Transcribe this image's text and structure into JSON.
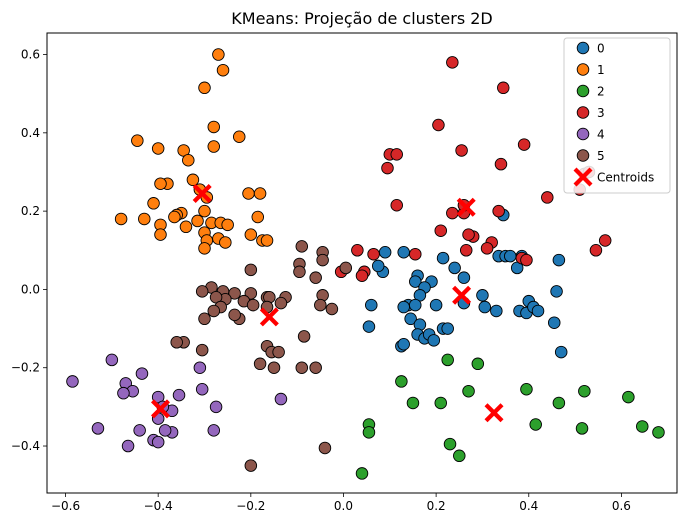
{
  "chart_data": {
    "type": "scatter",
    "title": "KMeans: Projeção de clusters 2D",
    "xlabel": "",
    "ylabel": "",
    "xlim": [
      -0.64,
      0.72
    ],
    "ylim": [
      -0.52,
      0.655
    ],
    "xticks": [
      -0.6,
      -0.4,
      -0.2,
      0.0,
      0.2,
      0.4,
      0.6
    ],
    "xtick_labels": [
      "−0.6",
      "−0.4",
      "−0.2",
      "0.0",
      "0.2",
      "0.4",
      "0.6"
    ],
    "yticks": [
      -0.4,
      -0.2,
      0.0,
      0.2,
      0.4,
      0.6
    ],
    "ytick_labels": [
      "−0.4",
      "−0.2",
      "0.0",
      "0.2",
      "0.4",
      "0.6"
    ],
    "grid": false,
    "legend_position": "top-right",
    "series": [
      {
        "name": "0",
        "color": "#1f77b4",
        "points": [
          [
            0.09,
            0.095
          ],
          [
            0.085,
            0.045
          ],
          [
            0.075,
            0.06
          ],
          [
            0.13,
            0.095
          ],
          [
            0.16,
            0.035
          ],
          [
            0.155,
            0.02
          ],
          [
            0.19,
            0.02
          ],
          [
            0.175,
            0.005
          ],
          [
            0.165,
            -0.015
          ],
          [
            0.14,
            -0.04
          ],
          [
            0.13,
            -0.045
          ],
          [
            0.155,
            -0.04
          ],
          [
            0.145,
            -0.075
          ],
          [
            0.165,
            -0.09
          ],
          [
            0.16,
            -0.115
          ],
          [
            0.175,
            -0.125
          ],
          [
            0.185,
            -0.115
          ],
          [
            0.195,
            -0.13
          ],
          [
            0.125,
            -0.145
          ],
          [
            0.13,
            -0.14
          ],
          [
            0.2,
            -0.04
          ],
          [
            0.215,
            -0.1
          ],
          [
            0.225,
            -0.1
          ],
          [
            0.215,
            0.08
          ],
          [
            0.24,
            0.055
          ],
          [
            0.26,
            -0.035
          ],
          [
            0.26,
            0.03
          ],
          [
            0.3,
            -0.015
          ],
          [
            0.305,
            -0.045
          ],
          [
            0.33,
            -0.055
          ],
          [
            0.335,
            0.085
          ],
          [
            0.345,
            0.19
          ],
          [
            0.35,
            0.085
          ],
          [
            0.36,
            0.085
          ],
          [
            0.375,
            0.055
          ],
          [
            0.385,
            0.085
          ],
          [
            0.38,
            -0.055
          ],
          [
            0.395,
            -0.06
          ],
          [
            0.4,
            -0.03
          ],
          [
            0.41,
            -0.045
          ],
          [
            0.42,
            -0.055
          ],
          [
            0.455,
            -0.085
          ],
          [
            0.46,
            -0.005
          ],
          [
            0.465,
            0.075
          ],
          [
            0.47,
            -0.16
          ],
          [
            0.06,
            -0.04
          ],
          [
            0.055,
            -0.095
          ]
        ]
      },
      {
        "name": "1",
        "color": "#ff7f0e",
        "points": [
          [
            -0.27,
            0.6
          ],
          [
            -0.26,
            0.56
          ],
          [
            -0.3,
            0.515
          ],
          [
            -0.28,
            0.415
          ],
          [
            -0.225,
            0.39
          ],
          [
            -0.445,
            0.38
          ],
          [
            -0.4,
            0.36
          ],
          [
            -0.345,
            0.355
          ],
          [
            -0.335,
            0.33
          ],
          [
            -0.28,
            0.365
          ],
          [
            -0.31,
            0.255
          ],
          [
            -0.325,
            0.28
          ],
          [
            -0.38,
            0.27
          ],
          [
            -0.395,
            0.27
          ],
          [
            -0.41,
            0.22
          ],
          [
            -0.295,
            0.235
          ],
          [
            -0.205,
            0.245
          ],
          [
            -0.18,
            0.245
          ],
          [
            -0.3,
            0.2
          ],
          [
            -0.35,
            0.195
          ],
          [
            -0.36,
            0.19
          ],
          [
            -0.365,
            0.185
          ],
          [
            -0.315,
            0.175
          ],
          [
            -0.285,
            0.17
          ],
          [
            -0.265,
            0.17
          ],
          [
            -0.25,
            0.165
          ],
          [
            -0.185,
            0.185
          ],
          [
            -0.395,
            0.165
          ],
          [
            -0.43,
            0.18
          ],
          [
            -0.48,
            0.18
          ],
          [
            -0.395,
            0.14
          ],
          [
            -0.34,
            0.16
          ],
          [
            -0.3,
            0.145
          ],
          [
            -0.295,
            0.125
          ],
          [
            -0.27,
            0.13
          ],
          [
            -0.255,
            0.12
          ],
          [
            -0.2,
            0.14
          ],
          [
            -0.175,
            0.125
          ],
          [
            -0.165,
            0.125
          ],
          [
            -0.3,
            0.105
          ]
        ]
      },
      {
        "name": "2",
        "color": "#2ca02c",
        "points": [
          [
            0.225,
            -0.18
          ],
          [
            0.29,
            -0.19
          ],
          [
            0.125,
            -0.235
          ],
          [
            0.27,
            -0.26
          ],
          [
            0.395,
            -0.255
          ],
          [
            0.52,
            -0.26
          ],
          [
            0.15,
            -0.29
          ],
          [
            0.21,
            -0.29
          ],
          [
            0.465,
            -0.29
          ],
          [
            0.055,
            -0.345
          ],
          [
            0.055,
            -0.365
          ],
          [
            0.415,
            -0.345
          ],
          [
            0.515,
            -0.355
          ],
          [
            0.615,
            -0.275
          ],
          [
            0.645,
            -0.35
          ],
          [
            0.68,
            -0.365
          ],
          [
            0.23,
            -0.395
          ],
          [
            0.25,
            -0.425
          ],
          [
            0.04,
            -0.47
          ]
        ]
      },
      {
        "name": "3",
        "color": "#d62728",
        "points": [
          [
            0.235,
            0.58
          ],
          [
            0.345,
            0.515
          ],
          [
            0.205,
            0.42
          ],
          [
            0.255,
            0.355
          ],
          [
            0.39,
            0.37
          ],
          [
            0.34,
            0.32
          ],
          [
            0.1,
            0.345
          ],
          [
            0.115,
            0.345
          ],
          [
            0.095,
            0.31
          ],
          [
            0.115,
            0.215
          ],
          [
            0.235,
            0.195
          ],
          [
            0.26,
            0.195
          ],
          [
            0.335,
            0.2
          ],
          [
            0.44,
            0.235
          ],
          [
            0.51,
            0.255
          ],
          [
            0.52,
            0.295
          ],
          [
            0.53,
            0.3
          ],
          [
            0.21,
            0.15
          ],
          [
            0.28,
            0.135
          ],
          [
            0.27,
            0.14
          ],
          [
            0.32,
            0.12
          ],
          [
            0.265,
            0.1
          ],
          [
            0.31,
            0.105
          ],
          [
            0.385,
            0.08
          ],
          [
            0.395,
            0.075
          ],
          [
            0.155,
            0.09
          ],
          [
            0.03,
            0.1
          ],
          [
            0.065,
            0.09
          ],
          [
            0.045,
            0.045
          ],
          [
            0.04,
            0.035
          ],
          [
            -0.005,
            0.045
          ],
          [
            0.545,
            0.1
          ],
          [
            0.565,
            0.125
          ],
          [
            0.26,
            0.215
          ]
        ]
      },
      {
        "name": "4",
        "color": "#9467bd",
        "points": [
          [
            -0.585,
            -0.235
          ],
          [
            -0.5,
            -0.18
          ],
          [
            -0.435,
            -0.215
          ],
          [
            -0.47,
            -0.24
          ],
          [
            -0.455,
            -0.26
          ],
          [
            -0.475,
            -0.265
          ],
          [
            -0.4,
            -0.275
          ],
          [
            -0.355,
            -0.27
          ],
          [
            -0.31,
            -0.2
          ],
          [
            -0.305,
            -0.255
          ],
          [
            -0.275,
            -0.3
          ],
          [
            -0.135,
            -0.28
          ],
          [
            -0.37,
            -0.31
          ],
          [
            -0.4,
            -0.33
          ],
          [
            -0.53,
            -0.355
          ],
          [
            -0.44,
            -0.36
          ],
          [
            -0.37,
            -0.365
          ],
          [
            -0.28,
            -0.36
          ],
          [
            -0.385,
            -0.36
          ],
          [
            -0.41,
            -0.385
          ],
          [
            -0.4,
            -0.39
          ],
          [
            -0.465,
            -0.4
          ],
          [
            -0.39,
            -0.3
          ]
        ]
      },
      {
        "name": "5",
        "color": "#8c564b",
        "points": [
          [
            -0.09,
            0.11
          ],
          [
            -0.045,
            0.095
          ],
          [
            -0.045,
            0.075
          ],
          [
            -0.095,
            0.065
          ],
          [
            -0.095,
            0.045
          ],
          [
            -0.2,
            0.05
          ],
          [
            -0.06,
            0.03
          ],
          [
            0.005,
            0.055
          ],
          [
            -0.285,
            0.005
          ],
          [
            -0.305,
            -0.005
          ],
          [
            -0.26,
            -0.005
          ],
          [
            -0.235,
            -0.01
          ],
          [
            -0.2,
            -0.01
          ],
          [
            -0.165,
            -0.02
          ],
          [
            -0.16,
            -0.02
          ],
          [
            -0.255,
            -0.025
          ],
          [
            -0.275,
            -0.02
          ],
          [
            -0.045,
            -0.015
          ],
          [
            -0.125,
            -0.02
          ],
          [
            -0.135,
            -0.035
          ],
          [
            -0.05,
            -0.04
          ],
          [
            -0.215,
            -0.03
          ],
          [
            -0.195,
            -0.04
          ],
          [
            -0.265,
            -0.045
          ],
          [
            -0.28,
            -0.055
          ],
          [
            -0.225,
            -0.075
          ],
          [
            -0.235,
            -0.065
          ],
          [
            -0.3,
            -0.075
          ],
          [
            -0.165,
            -0.045
          ],
          [
            -0.025,
            -0.05
          ],
          [
            -0.085,
            -0.12
          ],
          [
            -0.345,
            -0.135
          ],
          [
            -0.36,
            -0.135
          ],
          [
            -0.165,
            -0.145
          ],
          [
            -0.155,
            -0.16
          ],
          [
            -0.14,
            -0.16
          ],
          [
            -0.305,
            -0.155
          ],
          [
            -0.18,
            -0.19
          ],
          [
            -0.15,
            -0.2
          ],
          [
            -0.09,
            -0.2
          ],
          [
            -0.06,
            -0.2
          ],
          [
            -0.04,
            -0.405
          ],
          [
            -0.2,
            -0.45
          ]
        ]
      }
    ],
    "centroids": {
      "name": "Centroids",
      "color": "#ff0000",
      "marker": "X",
      "points": [
        [
          0.255,
          -0.015
        ],
        [
          -0.305,
          0.245
        ],
        [
          0.325,
          -0.315
        ],
        [
          0.265,
          0.21
        ],
        [
          -0.395,
          -0.305
        ],
        [
          -0.16,
          -0.07
        ]
      ]
    }
  }
}
